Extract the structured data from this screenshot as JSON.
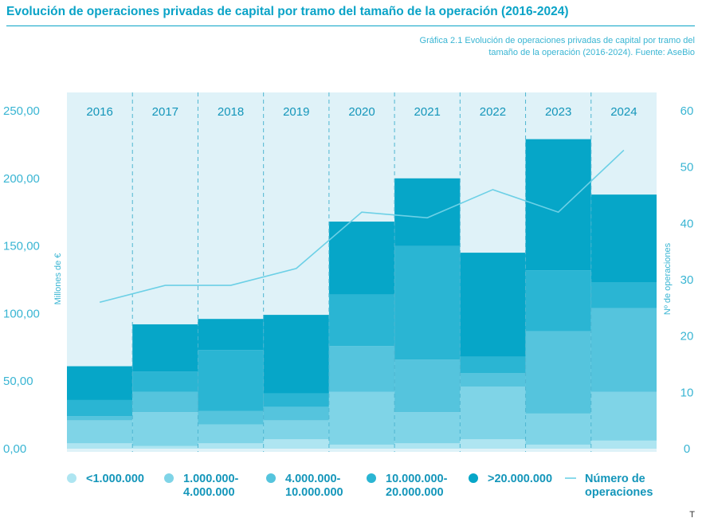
{
  "header": {
    "title": "Evolución de operaciones privadas de capital por tramo del tamaño de la operación (2016-2024)",
    "caption_line1": "Gráfica 2.1 Evolución de operaciones privadas de capital por tramo del",
    "caption_line2": "tamaño de la operación (2016-2024). Fuente: AseBio"
  },
  "corner_mark": "T",
  "colors": {
    "band_bg": "#dff2f8",
    "line": "#6cd0e6",
    "axis_text": "#39b5d3",
    "divider": "#4fb6d1",
    "segments": [
      "#aee5f1",
      "#7fd4e7",
      "#55c4dd",
      "#2ab5d3",
      "#06a6c8"
    ]
  },
  "chart_data": {
    "type": "stacked-bar+line",
    "categories": [
      "2016",
      "2017",
      "2018",
      "2019",
      "2020",
      "2021",
      "2022",
      "2023",
      "2024"
    ],
    "series": [
      {
        "name": "<1.000.000",
        "values": [
          4,
          2,
          4,
          7,
          3,
          4,
          7,
          3,
          6
        ]
      },
      {
        "name": "1.000.000-4.000.000",
        "values": [
          17,
          25,
          14,
          14,
          39,
          23,
          39,
          23,
          36
        ]
      },
      {
        "name": "4.000.000-10.000.000",
        "values": [
          3,
          15,
          10,
          10,
          34,
          39,
          10,
          61,
          62
        ]
      },
      {
        "name": "10.000.000-20.000.000",
        "values": [
          12,
          15,
          45,
          10,
          38,
          84,
          12,
          45,
          19
        ]
      },
      {
        "name": ">20.000.000",
        "values": [
          25,
          35,
          23,
          58,
          54,
          50,
          77,
          97,
          65
        ]
      }
    ],
    "line_series": {
      "name": "Número de operaciones",
      "values": [
        26,
        29,
        29,
        32,
        42,
        41,
        46,
        42,
        53
      ]
    },
    "y_left": {
      "label": "Millones de €",
      "min": 0,
      "max": 250,
      "ticks": [
        "0,00",
        "50,00",
        "100,00",
        "150,00",
        "200,00",
        "250,00"
      ]
    },
    "y_right": {
      "label": "Nº de operaciones",
      "min": 0,
      "max": 60,
      "ticks": [
        "0",
        "10",
        "20",
        "30",
        "40",
        "50",
        "60"
      ]
    },
    "legend": [
      {
        "lines": [
          "<1.000.000"
        ]
      },
      {
        "lines": [
          "1.000.000-",
          "4.000.000"
        ]
      },
      {
        "lines": [
          "4.000.000-",
          "10.000.000"
        ]
      },
      {
        "lines": [
          "10.000.000-",
          "20.000.000"
        ]
      },
      {
        "lines": [
          ">20.000.000"
        ]
      },
      {
        "lines": [
          "Número de",
          "operaciones"
        ]
      }
    ],
    "legend_position": "bottom"
  }
}
